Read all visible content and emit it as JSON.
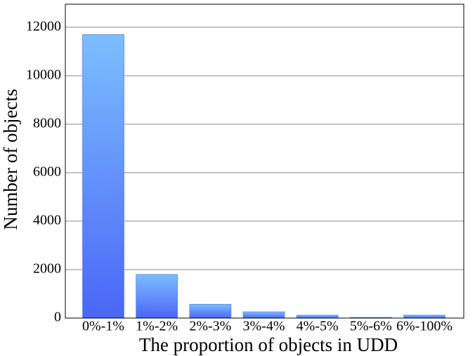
{
  "chart_data": {
    "type": "bar",
    "x_label": "The proportion of objects in UDD",
    "y_label": "Number of objects",
    "categories": [
      "0%-1%",
      "1%-2%",
      "2%-3%",
      "3%-4%",
      "4%-5%",
      "5%-6%",
      "6%-100%"
    ],
    "values": [
      11700,
      1800,
      570,
      260,
      120,
      30,
      120
    ],
    "gradient": [
      "#7cbeff",
      "#4a66f6"
    ],
    "ylim": [
      0,
      12950
    ],
    "yticks": [
      0,
      2000,
      4000,
      6000,
      8000,
      10000,
      12000
    ],
    "grid": true
  }
}
